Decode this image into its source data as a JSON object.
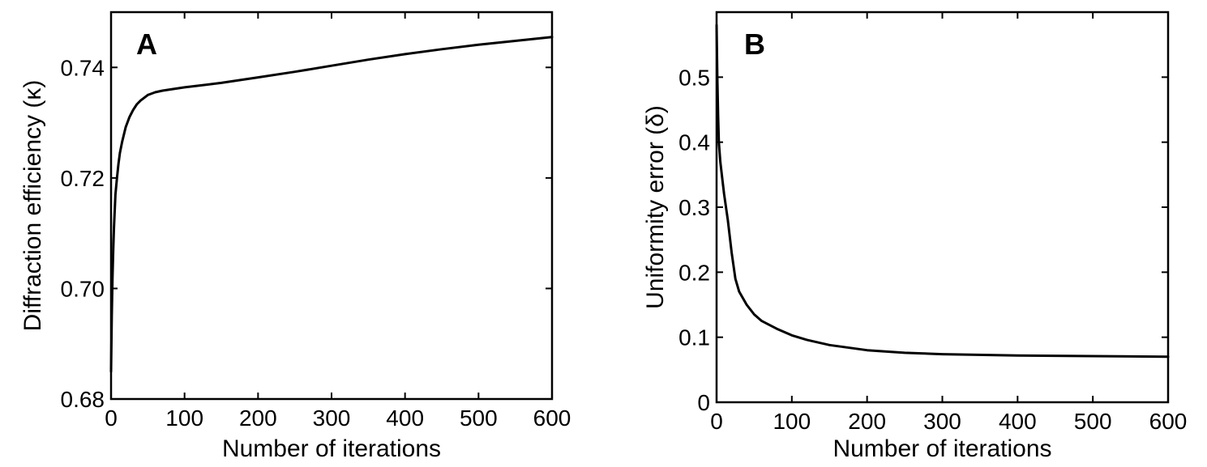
{
  "chart_data": [
    {
      "type": "line",
      "panel_label": "A",
      "xlabel": "Number of iterations",
      "ylabel": "Diffraction efficiency (κ)",
      "xlim": [
        0,
        600
      ],
      "ylim": [
        0.68,
        0.75
      ],
      "xticks": [
        0,
        100,
        200,
        300,
        400,
        500,
        600
      ],
      "xtick_labels": [
        "0",
        "100",
        "200",
        "300",
        "400",
        "500",
        "600"
      ],
      "yticks": [
        0.68,
        0.7,
        0.72,
        0.74
      ],
      "ytick_labels": [
        "0.68",
        "0.70",
        "0.72",
        "0.74"
      ],
      "grid": false,
      "series": [
        {
          "color": "#000000",
          "x": [
            0,
            1,
            2,
            3,
            4,
            5,
            6,
            8,
            10,
            12,
            15,
            20,
            25,
            30,
            35,
            40,
            50,
            60,
            70,
            80,
            100,
            150,
            200,
            250,
            300,
            350,
            400,
            450,
            500,
            550,
            600
          ],
          "y": [
            0.685,
            0.695,
            0.702,
            0.707,
            0.711,
            0.714,
            0.717,
            0.72,
            0.7225,
            0.7245,
            0.7265,
            0.7292,
            0.731,
            0.7323,
            0.7333,
            0.734,
            0.735,
            0.7355,
            0.7358,
            0.736,
            0.7364,
            0.7372,
            0.7382,
            0.7392,
            0.7403,
            0.7414,
            0.7424,
            0.7433,
            0.7441,
            0.7448,
            0.7455
          ]
        }
      ]
    },
    {
      "type": "line",
      "panel_label": "B",
      "xlabel": "Number of iterations",
      "ylabel": "Uniformity error (δ)",
      "xlim": [
        0,
        600
      ],
      "ylim": [
        0,
        0.6
      ],
      "xticks": [
        0,
        100,
        200,
        300,
        400,
        500,
        600
      ],
      "xtick_labels": [
        "0",
        "100",
        "200",
        "300",
        "400",
        "500",
        "600"
      ],
      "yticks": [
        0,
        0.1,
        0.2,
        0.3,
        0.4,
        0.5
      ],
      "ytick_labels": [
        "0",
        "0.1",
        "0.2",
        "0.3",
        "0.4",
        "0.5"
      ],
      "grid": false,
      "series": [
        {
          "color": "#000000",
          "x": [
            0,
            1,
            2,
            3,
            5,
            8,
            10,
            15,
            20,
            25,
            30,
            40,
            50,
            60,
            80,
            100,
            120,
            150,
            200,
            250,
            300,
            400,
            500,
            600
          ],
          "y": [
            0.58,
            0.5,
            0.44,
            0.4,
            0.37,
            0.34,
            0.32,
            0.28,
            0.23,
            0.19,
            0.17,
            0.15,
            0.135,
            0.125,
            0.113,
            0.103,
            0.096,
            0.088,
            0.08,
            0.076,
            0.074,
            0.072,
            0.071,
            0.07
          ]
        }
      ]
    }
  ]
}
